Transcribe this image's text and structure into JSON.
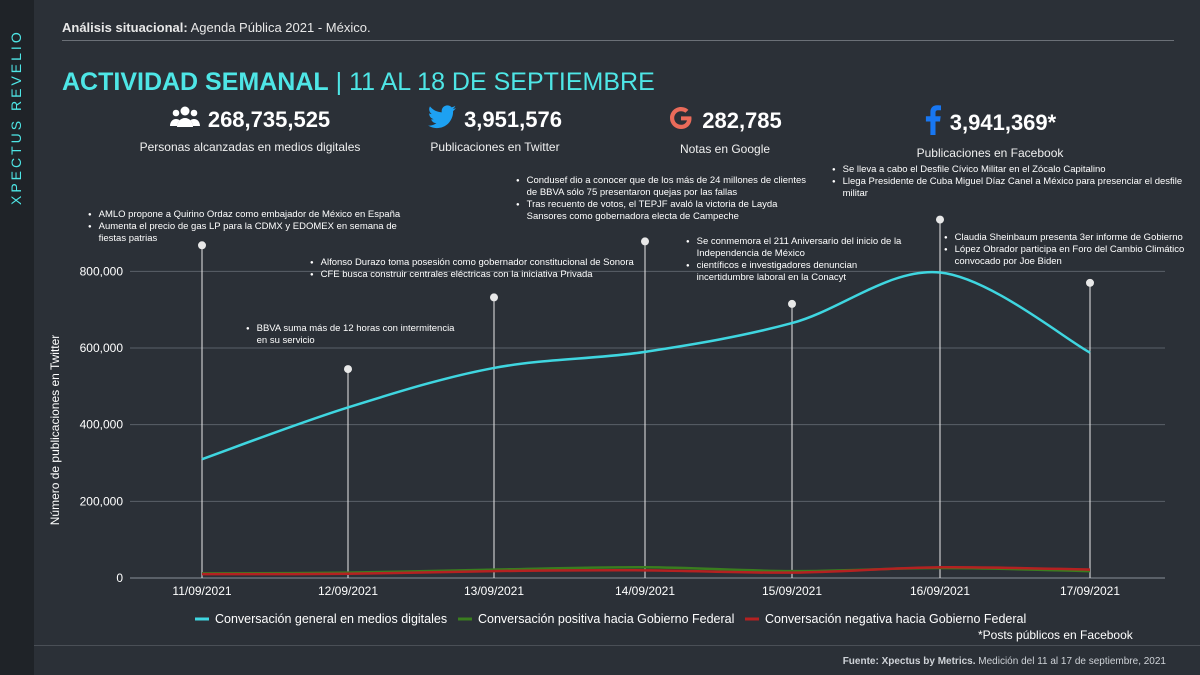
{
  "brand": "XPECTUS REVELIO",
  "header": {
    "label": "Análisis situacional:",
    "text": "Agenda Pública 2021 - México."
  },
  "title": {
    "main": "ACTIVIDAD SEMANAL",
    "sep": " | ",
    "sub": "11 AL 18 DE SEPTIEMBRE"
  },
  "kpis": [
    {
      "icon": "people-icon",
      "value": "268,735,525",
      "label": "Personas alcanzadas en medios digitales"
    },
    {
      "icon": "twitter-icon",
      "value": "3,951,576",
      "label": "Publicaciones en Twitter"
    },
    {
      "icon": "google-icon",
      "value": "282,785",
      "label": "Notas en Google"
    },
    {
      "icon": "facebook-icon",
      "value": "3,941,369*",
      "label": "Publicaciones en Facebook"
    }
  ],
  "colors": {
    "accent": "#4ee6e6",
    "series_general": "#3fd6e0",
    "series_positive": "#3a7d1f",
    "series_negative": "#b42121",
    "twitter": "#1da1f2",
    "google": "#ea6b5a",
    "facebook": "#1877f2"
  },
  "chart_data": {
    "type": "line",
    "ylabel": "Número de publicaciones en Twitter",
    "xlabel": "",
    "ylim": [
      0,
      900000
    ],
    "yticks": [
      0,
      200000,
      400000,
      600000,
      800000
    ],
    "ytick_labels": [
      "0",
      "200,000",
      "400,000",
      "600,000",
      "800,000"
    ],
    "grid": true,
    "legend_position": "bottom",
    "categories": [
      "11/09/2021",
      "12/09/2021",
      "13/09/2021",
      "14/09/2021",
      "15/09/2021",
      "16/09/2021",
      "17/09/2021"
    ],
    "series": [
      {
        "name": "Conversación general en medios digitales",
        "values": [
          310000,
          445000,
          548000,
          590000,
          665000,
          797000,
          588000
        ]
      },
      {
        "name": "Conversación positiva hacia Gobierno Federal",
        "values": [
          12000,
          14000,
          22000,
          28000,
          18000,
          26000,
          18000
        ]
      },
      {
        "name": "Conversación negativa hacia Gobierno Federal",
        "values": [
          10000,
          11000,
          18000,
          20000,
          14000,
          28000,
          22000
        ]
      }
    ],
    "annotations": [
      {
        "date": "11/09/2021",
        "marker": 868000,
        "notes": [
          "AMLO propone a Quirino Ordaz como embajador de México en España",
          "Aumenta el precio de gas LP para la CDMX y EDOMEX en semana de fiestas patrias"
        ]
      },
      {
        "date": "12/09/2021",
        "marker": 545000,
        "notes": [
          "BBVA suma más de 12 horas con intermitencia en su servicio"
        ]
      },
      {
        "date": "13/09/2021",
        "marker": 732000,
        "notes": [
          "Alfonso Durazo toma posesión como gobernador constitucional de Sonora",
          "CFE busca construir centrales eléctricas con la iniciativa Privada"
        ]
      },
      {
        "date": "14/09/2021",
        "marker": 878000,
        "notes": [
          "Condusef dio a conocer que de los más de 24 millones de clientes de BBVA sólo 75 presentaron quejas por las fallas",
          "Tras recuento de votos, el TEPJF avaló la victoria de Layda Sansores como gobernadora electa de Campeche"
        ]
      },
      {
        "date": "15/09/2021",
        "marker": 715000,
        "notes": [
          "Se conmemora el 211 Aniversario del inicio de la Independencia de México",
          "científicos e investigadores denuncian incertidumbre laboral en la Conacyt"
        ]
      },
      {
        "date": "16/09/2021",
        "marker": 935000,
        "notes": [
          "Se lleva a cabo el Desfile Cívico Militar en el Zócalo Capitalino",
          "Llega Presidente de Cuba Miguel Díaz Canel a México para presenciar el desfile militar"
        ]
      },
      {
        "date": "17/09/2021",
        "marker": 770000,
        "notes": [
          "Claudia Sheinbaum presenta 3er informe de Gobierno",
          "López Obrador participa en Foro del Cambio Climático convocado por Joe Biden"
        ]
      }
    ]
  },
  "footnote": "*Posts públicos en Facebook",
  "source": {
    "label": "Fuente: Xpectus by Metrics.",
    "text": " Medición del 11 al 17 de septiembre, 2021"
  }
}
